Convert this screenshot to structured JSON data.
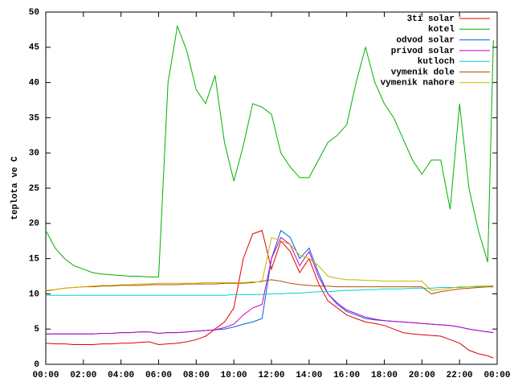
{
  "chart_data": {
    "type": "line",
    "ylabel": "teplota ve C",
    "xlim": [
      0,
      24
    ],
    "ylim": [
      0,
      50
    ],
    "xticks": [
      {
        "value": 0,
        "label": "00:00"
      },
      {
        "value": 2,
        "label": "02:00"
      },
      {
        "value": 4,
        "label": "04:00"
      },
      {
        "value": 6,
        "label": "06:00"
      },
      {
        "value": 8,
        "label": "08:00"
      },
      {
        "value": 10,
        "label": "10:00"
      },
      {
        "value": 12,
        "label": "12:00"
      },
      {
        "value": 14,
        "label": "14:00"
      },
      {
        "value": 16,
        "label": "16:00"
      },
      {
        "value": 18,
        "label": "18:00"
      },
      {
        "value": 20,
        "label": "20:00"
      },
      {
        "value": 22,
        "label": "22:00"
      },
      {
        "value": 24,
        "label": "00:00"
      }
    ],
    "yticks": [
      0,
      5,
      10,
      15,
      20,
      25,
      30,
      35,
      40,
      45,
      50
    ],
    "legend": "top-right",
    "x": [
      0,
      0.5,
      1,
      1.5,
      2,
      2.5,
      3,
      3.5,
      4,
      4.5,
      5,
      5.5,
      6,
      6.5,
      7,
      7.5,
      8,
      8.5,
      9,
      9.5,
      10,
      10.5,
      11,
      11.5,
      12,
      12.5,
      13,
      13.5,
      14,
      14.5,
      15,
      15.5,
      16,
      16.5,
      17,
      17.5,
      18,
      18.5,
      19,
      19.5,
      20,
      20.5,
      21,
      21.5,
      22,
      22.5,
      23,
      23.5,
      23.8
    ],
    "series": [
      {
        "name": "3ti solar",
        "color": "#e00000",
        "values": [
          3,
          2.9,
          2.9,
          2.8,
          2.8,
          2.8,
          2.9,
          2.9,
          3,
          3,
          3.1,
          3.2,
          2.8,
          2.9,
          3,
          3.2,
          3.5,
          4,
          5,
          6,
          8,
          15,
          18.5,
          19,
          13.5,
          17.5,
          16,
          13,
          15,
          11.5,
          9,
          8,
          7,
          6.5,
          6,
          5.8,
          5.5,
          5,
          4.5,
          4.3,
          4.2,
          4.1,
          4,
          3.5,
          3,
          2,
          1.5,
          1.2,
          0.9
        ]
      },
      {
        "name": "kotel",
        "color": "#00b000",
        "values": [
          19,
          16.5,
          15,
          14,
          13.5,
          13,
          12.8,
          12.7,
          12.6,
          12.5,
          12.5,
          12.4,
          12.4,
          40,
          48,
          44.5,
          39,
          37,
          41,
          31.5,
          26,
          31,
          37,
          36.5,
          35.5,
          30,
          28,
          26.5,
          26.5,
          29,
          31.5,
          32.5,
          34,
          40,
          45,
          40,
          37,
          35,
          32,
          29,
          27,
          29,
          29,
          22,
          37,
          25,
          19,
          14.5,
          46
        ]
      },
      {
        "name": "odvod solar",
        "color": "#0060e0",
        "values": [
          4.3,
          4.3,
          4.3,
          4.3,
          4.3,
          4.3,
          4.4,
          4.4,
          4.5,
          4.5,
          4.6,
          4.6,
          4.4,
          4.5,
          4.5,
          4.6,
          4.7,
          4.8,
          4.9,
          5,
          5.3,
          5.7,
          6,
          6.5,
          15,
          19,
          18,
          15,
          16.5,
          13,
          10,
          8.5,
          7.5,
          7,
          6.5,
          6.3,
          6.2,
          6.1,
          6,
          5.9,
          5.8,
          5.7,
          5.6,
          5.5,
          5.3,
          5,
          4.8,
          4.6,
          4.5
        ]
      },
      {
        "name": "privod solar",
        "color": "#c000c0",
        "values": [
          4.3,
          4.3,
          4.3,
          4.3,
          4.3,
          4.3,
          4.4,
          4.4,
          4.5,
          4.5,
          4.6,
          4.6,
          4.4,
          4.5,
          4.5,
          4.6,
          4.7,
          4.8,
          4.9,
          5.2,
          5.7,
          7,
          8,
          8.5,
          15,
          18,
          17,
          14,
          16,
          12.5,
          10,
          8.7,
          7.7,
          7.2,
          6.7,
          6.4,
          6.2,
          6.1,
          6,
          5.9,
          5.8,
          5.7,
          5.6,
          5.5,
          5.3,
          5,
          4.8,
          4.6,
          4.5
        ]
      },
      {
        "name": "kutloch",
        "color": "#00d0d0",
        "values": [
          9.8,
          9.8,
          9.8,
          9.8,
          9.8,
          9.8,
          9.8,
          9.8,
          9.8,
          9.8,
          9.8,
          9.8,
          9.8,
          9.8,
          9.8,
          9.8,
          9.8,
          9.8,
          9.8,
          9.8,
          9.9,
          9.9,
          9.9,
          9.9,
          10,
          10,
          10.1,
          10.1,
          10.2,
          10.3,
          10.3,
          10.4,
          10.5,
          10.5,
          10.6,
          10.6,
          10.7,
          10.7,
          10.7,
          10.8,
          10.8,
          10.8,
          10.9,
          10.9,
          10.9,
          11,
          11,
          11,
          11
        ]
      },
      {
        "name": "vymenik dole",
        "color": "#b05000",
        "values": [
          10.4,
          10.6,
          10.8,
          10.9,
          11,
          11,
          11.1,
          11.1,
          11.2,
          11.2,
          11.2,
          11.3,
          11.3,
          11.3,
          11.3,
          11.4,
          11.4,
          11.4,
          11.4,
          11.5,
          11.5,
          11.5,
          11.6,
          11.8,
          12,
          11.8,
          11.5,
          11.3,
          11.2,
          11.1,
          11.1,
          11,
          11,
          11,
          11,
          11,
          11,
          11,
          11,
          11,
          11,
          10,
          10.3,
          10.5,
          10.7,
          10.8,
          10.9,
          11,
          11
        ]
      },
      {
        "name": "vymenik nahore",
        "color": "#c8b400",
        "values": [
          10.5,
          10.6,
          10.8,
          10.9,
          11,
          11.1,
          11.2,
          11.2,
          11.3,
          11.3,
          11.4,
          11.4,
          11.5,
          11.5,
          11.5,
          11.5,
          11.5,
          11.6,
          11.6,
          11.6,
          11.6,
          11.6,
          11.7,
          11.7,
          18,
          17.5,
          17,
          15.5,
          15,
          14,
          12.5,
          12.2,
          12,
          12,
          11.9,
          11.9,
          11.8,
          11.8,
          11.8,
          11.8,
          11.8,
          10.5,
          10.6,
          10.8,
          11,
          11,
          11.1,
          11.1,
          11.2
        ]
      }
    ]
  }
}
